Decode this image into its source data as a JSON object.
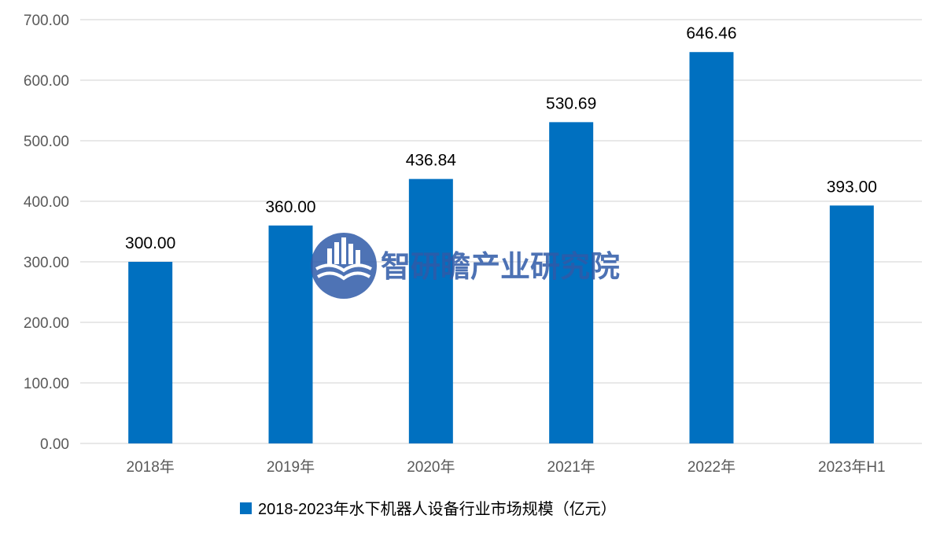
{
  "colors": {
    "bar": "#0070c0",
    "grid": "#d9d9d9",
    "axis_text": "#595959",
    "watermark": "#2f5aa8"
  },
  "watermark": {
    "text": "智研瞻产业研究院",
    "icon": "book-city-logo-icon"
  },
  "chart_data": {
    "type": "bar",
    "categories": [
      "2018年",
      "2019年",
      "2020年",
      "2021年",
      "2022年",
      "2023年H1"
    ],
    "series": [
      {
        "name": "2018-2023年水下机器人设备行业市场规模（亿元）",
        "values": [
          300.0,
          360.0,
          436.84,
          530.69,
          646.46,
          393.0
        ],
        "labels": [
          "300.00",
          "360.00",
          "436.84",
          "530.69",
          "646.46",
          "393.00"
        ]
      }
    ],
    "ylim": [
      0,
      700
    ],
    "yticks": [
      "0.00",
      "100.00",
      "200.00",
      "300.00",
      "400.00",
      "500.00",
      "600.00",
      "700.00"
    ],
    "ytick_values": [
      0,
      100,
      200,
      300,
      400,
      500,
      600,
      700
    ],
    "grid": true,
    "legend_position": "bottom"
  }
}
